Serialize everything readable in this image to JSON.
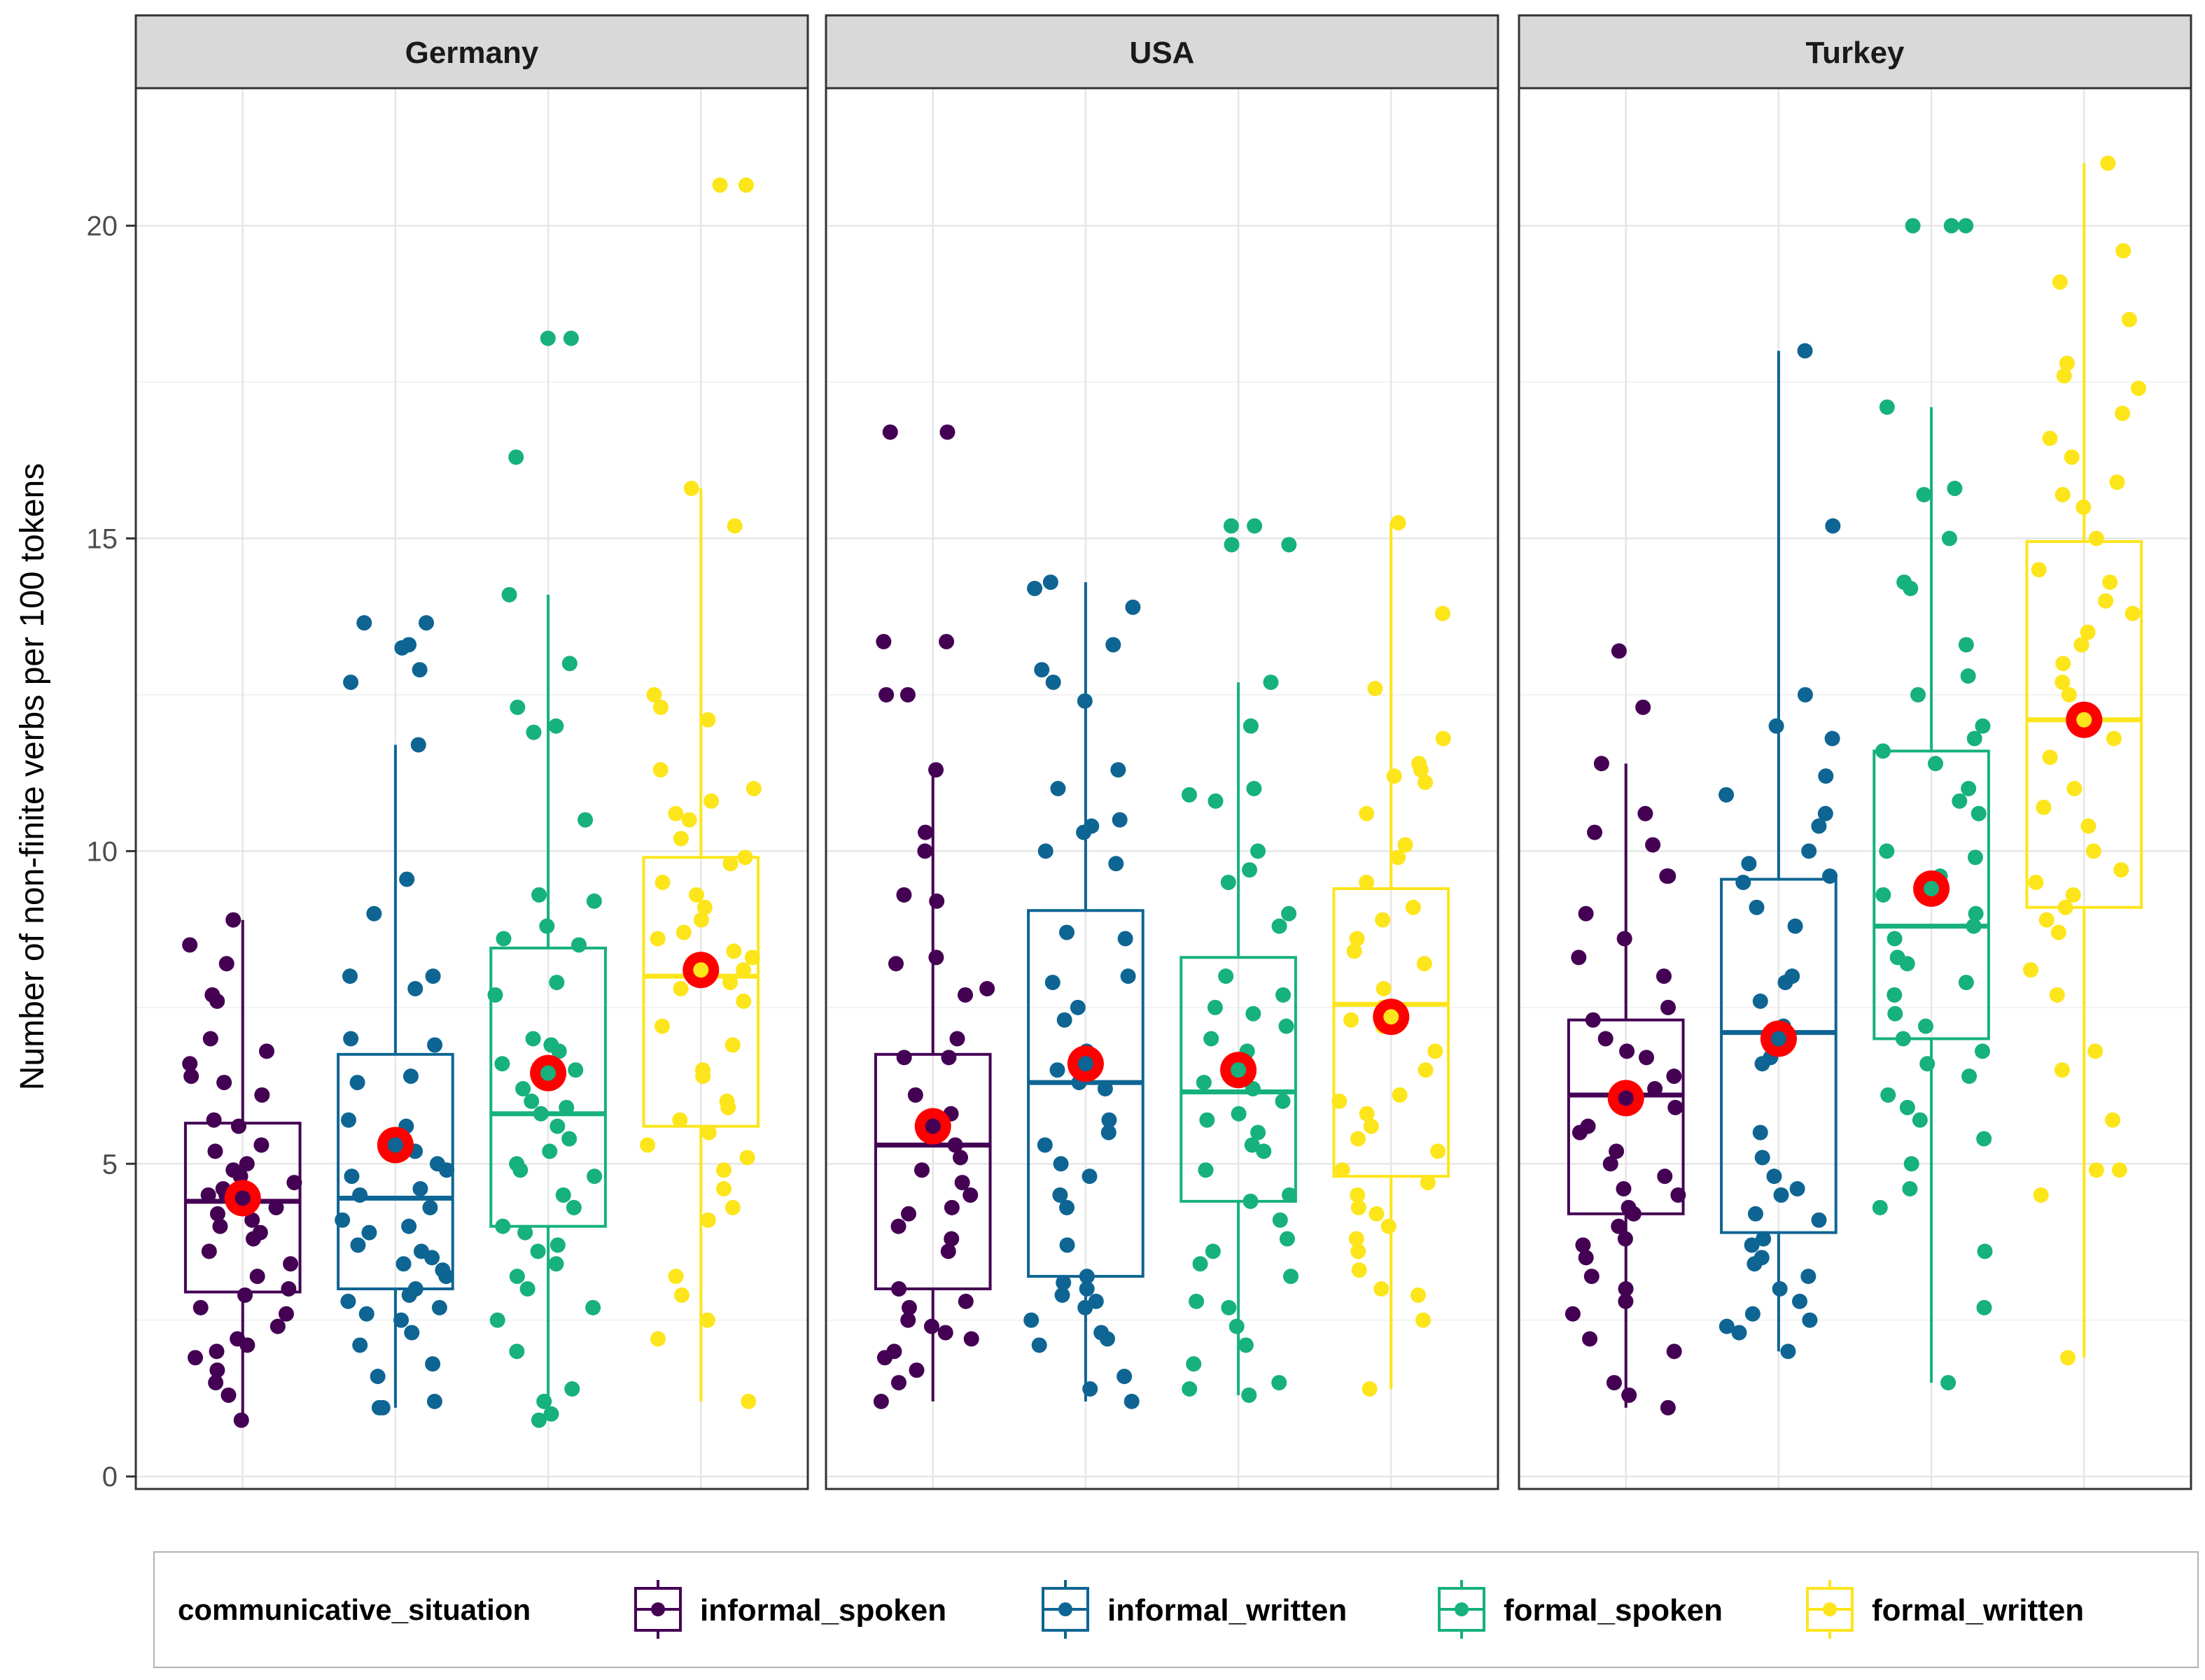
{
  "chart_data": {
    "type": "boxplot",
    "ylabel": "Number of non-finite verbs per 100 tokens",
    "xlabel": "",
    "ylim": [
      -0.2,
      22.2
    ],
    "yticks": [
      0,
      5,
      10,
      15,
      20
    ],
    "grid": true,
    "legend": {
      "title": "communicative_situation",
      "position": "bottom",
      "entries": [
        "informal_spoken",
        "informal_written",
        "formal_spoken",
        "formal_written"
      ]
    },
    "colors": {
      "informal_spoken": "#440154",
      "informal_written": "#0e6593",
      "formal_spoken": "#16b17c",
      "formal_written": "#fde51b",
      "mean_marker": "#ff0000"
    },
    "panels": [
      {
        "name": "Germany",
        "groups": [
          {
            "name": "informal_spoken",
            "whisker_low": 0.9,
            "q1": 2.95,
            "median": 4.4,
            "q3": 5.65,
            "whisker_high": 8.9,
            "mean": 4.45,
            "points": [
              8.9,
              8.5,
              8.2,
              7.7,
              7.6,
              7.0,
              6.8,
              6.6,
              6.4,
              6.3,
              6.1,
              5.7,
              5.6,
              5.3,
              5.2,
              5.0,
              4.9,
              4.8,
              4.7,
              4.6,
              4.5,
              4.5,
              4.3,
              4.2,
              4.1,
              4.0,
              3.9,
              3.8,
              3.6,
              3.4,
              3.2,
              3.0,
              2.9,
              2.7,
              2.6,
              2.4,
              2.2,
              2.1,
              2.0,
              1.9,
              1.7,
              1.5,
              1.3,
              0.9
            ]
          },
          {
            "name": "informal_written",
            "whisker_low": 1.1,
            "q1": 3.0,
            "median": 4.45,
            "q3": 6.75,
            "whisker_high": 11.7,
            "mean": 5.3,
            "points": [
              13.65,
              13.65,
              13.3,
              13.25,
              12.9,
              12.7,
              11.7,
              9.55,
              9.0,
              8.0,
              8.0,
              7.8,
              7.0,
              6.9,
              6.4,
              6.3,
              5.7,
              5.6,
              5.2,
              5.0,
              4.9,
              4.8,
              4.6,
              4.5,
              4.3,
              4.1,
              4.0,
              3.9,
              3.7,
              3.6,
              3.5,
              3.4,
              3.3,
              3.2,
              3.0,
              2.9,
              2.8,
              2.7,
              2.6,
              2.5,
              2.3,
              2.1,
              1.8,
              1.6,
              1.2,
              1.1,
              1.1
            ]
          },
          {
            "name": "formal_spoken",
            "whisker_low": 0.9,
            "q1": 4.0,
            "median": 5.8,
            "q3": 8.45,
            "whisker_high": 14.1,
            "mean": 6.45,
            "points": [
              18.2,
              18.2,
              16.3,
              14.1,
              13.0,
              12.3,
              12.0,
              11.9,
              10.5,
              9.3,
              9.2,
              8.8,
              8.6,
              8.5,
              7.9,
              7.7,
              7.0,
              6.9,
              6.8,
              6.6,
              6.5,
              6.2,
              6.0,
              5.9,
              5.8,
              5.6,
              5.4,
              5.2,
              5.0,
              4.9,
              4.8,
              4.5,
              4.3,
              4.0,
              3.9,
              3.7,
              3.6,
              3.4,
              3.2,
              3.0,
              2.7,
              2.5,
              2.0,
              1.4,
              1.2,
              1.0,
              0.9
            ]
          },
          {
            "name": "formal_written",
            "whisker_low": 1.2,
            "q1": 5.6,
            "median": 8.0,
            "q3": 9.9,
            "whisker_high": 15.8,
            "mean": 8.1,
            "points": [
              20.65,
              20.65,
              15.8,
              15.2,
              12.5,
              12.3,
              12.1,
              11.3,
              11.0,
              10.8,
              10.6,
              10.5,
              10.2,
              9.9,
              9.8,
              9.5,
              9.3,
              9.1,
              8.9,
              8.7,
              8.6,
              8.4,
              8.3,
              8.1,
              8.0,
              7.9,
              7.8,
              7.6,
              7.2,
              6.9,
              6.5,
              6.4,
              6.0,
              5.9,
              5.7,
              5.5,
              5.3,
              5.1,
              4.9,
              4.6,
              4.3,
              4.1,
              3.2,
              2.9,
              2.5,
              2.2,
              1.2
            ]
          }
        ]
      },
      {
        "name": "USA",
        "groups": [
          {
            "name": "informal_spoken",
            "whisker_low": 1.2,
            "q1": 3.0,
            "median": 5.3,
            "q3": 6.75,
            "whisker_high": 11.3,
            "mean": 5.6,
            "points": [
              16.7,
              16.7,
              13.35,
              13.35,
              12.5,
              12.5,
              11.3,
              10.3,
              10.0,
              9.3,
              9.2,
              8.3,
              8.2,
              7.8,
              7.7,
              7.0,
              6.7,
              6.7,
              6.1,
              5.8,
              5.7,
              5.5,
              5.3,
              5.1,
              4.9,
              4.7,
              4.5,
              4.3,
              4.2,
              4.0,
              3.8,
              3.6,
              3.0,
              2.8,
              2.7,
              2.5,
              2.4,
              2.3,
              2.2,
              2.0,
              1.9,
              1.7,
              1.5,
              1.2
            ]
          },
          {
            "name": "informal_written",
            "whisker_low": 1.2,
            "q1": 3.2,
            "median": 6.3,
            "q3": 9.05,
            "whisker_high": 14.3,
            "mean": 6.6,
            "points": [
              14.3,
              14.2,
              13.9,
              13.3,
              12.9,
              12.7,
              12.4,
              11.3,
              11.0,
              10.5,
              10.4,
              10.3,
              10.0,
              9.8,
              8.7,
              8.6,
              8.0,
              7.9,
              7.5,
              7.3,
              6.8,
              6.5,
              6.3,
              6.2,
              5.7,
              5.5,
              5.3,
              5.0,
              4.8,
              4.5,
              4.3,
              3.7,
              3.2,
              3.1,
              3.0,
              2.9,
              2.8,
              2.7,
              2.5,
              2.3,
              2.2,
              2.1,
              1.6,
              1.4,
              1.2
            ]
          },
          {
            "name": "formal_spoken",
            "whisker_low": 1.3,
            "q1": 4.4,
            "median": 6.15,
            "q3": 8.3,
            "whisker_high": 12.7,
            "mean": 6.5,
            "points": [
              15.2,
              15.2,
              14.9,
              14.9,
              12.7,
              12.0,
              11.0,
              10.9,
              10.8,
              10.0,
              9.7,
              9.5,
              9.0,
              8.8,
              8.0,
              7.7,
              7.5,
              7.4,
              7.2,
              7.0,
              6.8,
              6.5,
              6.3,
              6.2,
              6.0,
              5.8,
              5.7,
              5.5,
              5.3,
              5.2,
              4.9,
              4.5,
              4.4,
              4.1,
              3.8,
              3.6,
              3.4,
              3.2,
              2.8,
              2.7,
              2.4,
              2.1,
              1.8,
              1.5,
              1.4,
              1.3
            ]
          },
          {
            "name": "formal_written",
            "whisker_low": 1.4,
            "q1": 4.8,
            "median": 7.55,
            "q3": 9.4,
            "whisker_high": 15.25,
            "mean": 7.35,
            "points": [
              15.25,
              13.8,
              12.6,
              11.8,
              11.4,
              11.3,
              11.2,
              11.1,
              10.6,
              10.1,
              9.9,
              9.5,
              9.1,
              8.9,
              8.6,
              8.4,
              8.2,
              7.8,
              7.5,
              7.3,
              7.2,
              6.8,
              6.5,
              6.1,
              6.0,
              5.8,
              5.6,
              5.4,
              5.2,
              4.9,
              4.7,
              4.5,
              4.3,
              4.2,
              4.0,
              3.8,
              3.6,
              3.3,
              3.0,
              2.9,
              2.5,
              1.4
            ]
          }
        ]
      },
      {
        "name": "Turkey",
        "groups": [
          {
            "name": "informal_spoken",
            "whisker_low": 1.1,
            "q1": 4.2,
            "median": 6.1,
            "q3": 7.3,
            "whisker_high": 11.4,
            "mean": 6.05,
            "points": [
              13.2,
              12.3,
              11.4,
              10.6,
              10.3,
              10.1,
              9.6,
              9.6,
              9.0,
              8.6,
              8.3,
              8.0,
              7.5,
              7.3,
              7.0,
              6.8,
              6.7,
              6.4,
              6.2,
              5.9,
              5.6,
              5.5,
              5.2,
              5.0,
              4.8,
              4.6,
              4.5,
              4.3,
              4.2,
              4.0,
              3.8,
              3.7,
              3.5,
              3.2,
              3.0,
              2.8,
              2.6,
              2.2,
              2.0,
              1.5,
              1.3,
              1.1
            ]
          },
          {
            "name": "informal_written",
            "whisker_low": 2.0,
            "q1": 3.9,
            "median": 7.1,
            "q3": 9.55,
            "whisker_high": 18.0,
            "mean": 7.0,
            "points": [
              18.0,
              15.2,
              12.5,
              12.0,
              11.8,
              11.2,
              10.9,
              10.6,
              10.4,
              10.0,
              9.8,
              9.6,
              9.5,
              9.1,
              8.8,
              8.0,
              7.9,
              7.6,
              7.2,
              7.0,
              6.7,
              6.6,
              5.5,
              5.1,
              4.8,
              4.6,
              4.5,
              4.2,
              4.1,
              3.8,
              3.7,
              3.5,
              3.4,
              3.2,
              3.0,
              2.8,
              2.6,
              2.5,
              2.4,
              2.3,
              2.0
            ]
          },
          {
            "name": "formal_spoken",
            "whisker_low": 1.5,
            "q1": 7.0,
            "median": 8.8,
            "q3": 11.6,
            "whisker_high": 17.1,
            "mean": 9.4,
            "points": [
              20.0,
              20.0,
              20.0,
              17.1,
              15.8,
              15.7,
              15.0,
              14.3,
              14.2,
              13.3,
              12.8,
              12.5,
              12.0,
              11.8,
              11.6,
              11.4,
              11.0,
              10.8,
              10.6,
              10.0,
              9.9,
              9.6,
              9.3,
              9.0,
              8.8,
              8.6,
              8.3,
              8.2,
              7.9,
              7.7,
              7.4,
              7.2,
              7.0,
              6.8,
              6.6,
              6.4,
              6.1,
              5.9,
              5.7,
              5.4,
              5.0,
              4.6,
              4.3,
              3.6,
              2.7,
              1.5
            ]
          },
          {
            "name": "formal_written",
            "whisker_low": 1.9,
            "q1": 9.1,
            "median": 12.1,
            "q3": 14.95,
            "whisker_high": 21.0,
            "mean": 12.1,
            "points": [
              21.0,
              19.6,
              19.1,
              18.5,
              17.8,
              17.6,
              17.4,
              17.0,
              16.6,
              16.3,
              15.9,
              15.7,
              15.5,
              15.0,
              14.5,
              14.3,
              14.0,
              13.8,
              13.5,
              13.3,
              13.0,
              12.7,
              12.5,
              12.2,
              12.0,
              11.8,
              11.5,
              11.0,
              10.7,
              10.4,
              10.0,
              9.7,
              9.5,
              9.3,
              9.1,
              8.9,
              8.7,
              8.1,
              7.7,
              6.8,
              6.5,
              5.7,
              4.9,
              4.9,
              4.5,
              1.9
            ]
          }
        ]
      }
    ]
  }
}
